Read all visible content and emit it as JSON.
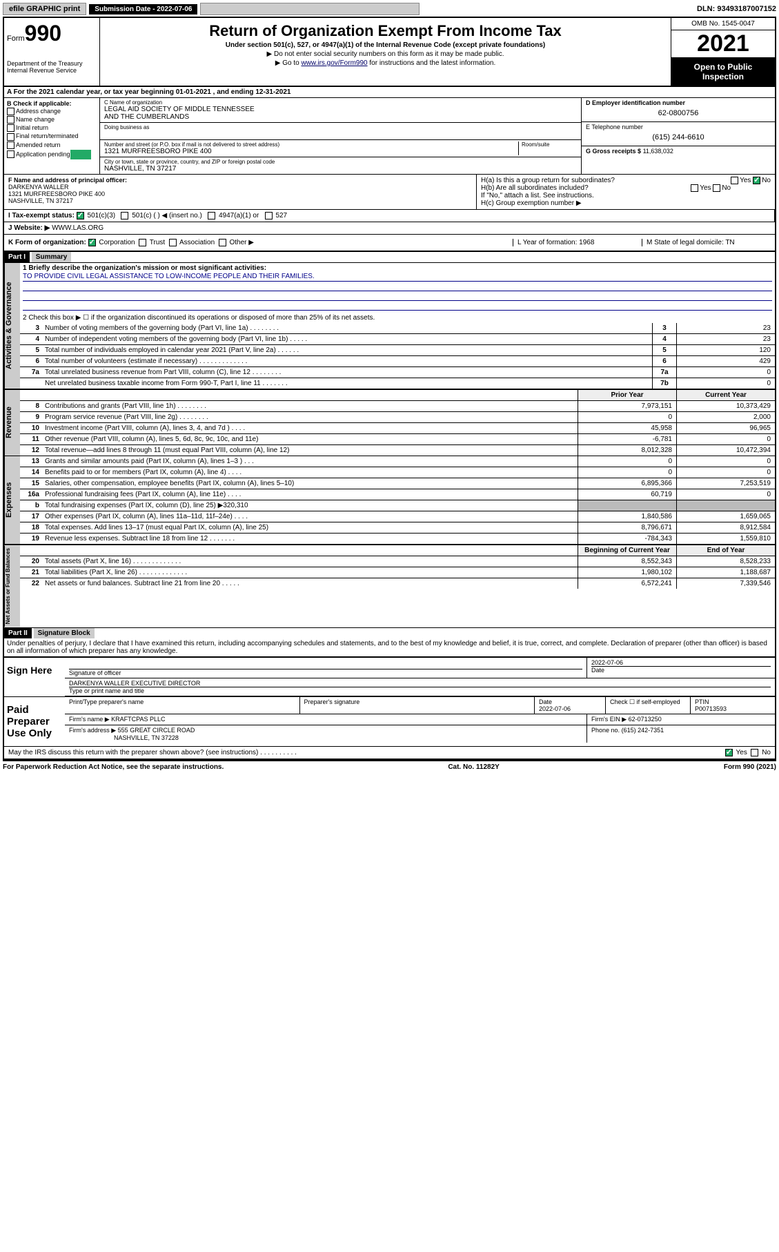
{
  "topbar": {
    "efile": "efile GRAPHIC print",
    "submission_label": "Submission Date - 2022-07-06",
    "dln": "DLN: 93493187007152"
  },
  "header": {
    "form_word": "Form",
    "form_num": "990",
    "title": "Return of Organization Exempt From Income Tax",
    "subtitle": "Under section 501(c), 527, or 4947(a)(1) of the Internal Revenue Code (except private foundations)",
    "note1": "▶ Do not enter social security numbers on this form as it may be made public.",
    "note2_pre": "▶ Go to ",
    "note2_link": "www.irs.gov/Form990",
    "note2_post": " for instructions and the latest information.",
    "dept": "Department of the Treasury\nInternal Revenue Service",
    "omb": "OMB No. 1545-0047",
    "year": "2021",
    "open": "Open to Public Inspection"
  },
  "rowA": "A For the 2021 calendar year, or tax year beginning 01-01-2021   , and ending 12-31-2021",
  "colB": {
    "title": "B Check if applicable:",
    "items": [
      "Address change",
      "Name change",
      "Initial return",
      "Final return/terminated",
      "Amended return",
      "Application pending"
    ]
  },
  "colC": {
    "name_label": "C Name of organization",
    "name": "LEGAL AID SOCIETY OF MIDDLE TENNESSEE\nAND THE CUMBERLANDS",
    "dba_label": "Doing business as",
    "addr_label": "Number and street (or P.O. box if mail is not delivered to street address)",
    "room_label": "Room/suite",
    "addr": "1321 MURFREESBORO PIKE 400",
    "city_label": "City or town, state or province, country, and ZIP or foreign postal code",
    "city": "NASHVILLE, TN  37217"
  },
  "colDE": {
    "d_label": "D Employer identification number",
    "d_val": "62-0800756",
    "e_label": "E Telephone number",
    "e_val": "(615) 244-6610",
    "g_label": "G Gross receipts $",
    "g_val": "11,638,032"
  },
  "rowF": {
    "label": "F Name and address of principal officer:",
    "line1": "DARKENYA WALLER",
    "line2": "1321 MURFREESBORO PIKE 400",
    "line3": "NASHVILLE, TN  37217"
  },
  "rowH": {
    "ha": "H(a) Is this a group return for subordinates?",
    "ha_ans": "No",
    "hb": "H(b) Are all subordinates included?",
    "hb_note": "If \"No,\" attach a list. See instructions.",
    "hc": "H(c) Group exemption number ▶"
  },
  "rowI": {
    "label": "I   Tax-exempt status:",
    "opts": [
      "501(c)(3)",
      "501(c) (   ) ◀ (insert no.)",
      "4947(a)(1) or",
      "527"
    ]
  },
  "rowJ": {
    "label": "J   Website: ▶",
    "val": "WWW.LAS.ORG"
  },
  "rowK": {
    "label": "K Form of organization:",
    "opts": [
      "Corporation",
      "Trust",
      "Association",
      "Other ▶"
    ],
    "l": "L Year of formation: 1968",
    "m": "M State of legal domicile: TN"
  },
  "part1": {
    "header": "Part I",
    "title": "Summary",
    "line1_label": "1  Briefly describe the organization's mission or most significant activities:",
    "line1_val": "TO PROVIDE CIVIL LEGAL ASSISTANCE TO LOW-INCOME PEOPLE AND THEIR FAMILIES.",
    "line2": "2  Check this box ▶ ☐  if the organization discontinued its operations or disposed of more than 25% of its net assets."
  },
  "gov_lines": [
    {
      "n": "3",
      "d": "Number of voting members of the governing body (Part VI, line 1a)  .   .   .   .   .   .   .   .",
      "b": "3",
      "v": "23"
    },
    {
      "n": "4",
      "d": "Number of independent voting members of the governing body (Part VI, line 1b)  .   .   .   .   .",
      "b": "4",
      "v": "23"
    },
    {
      "n": "5",
      "d": "Total number of individuals employed in calendar year 2021 (Part V, line 2a)  .   .   .   .   .   .",
      "b": "5",
      "v": "120"
    },
    {
      "n": "6",
      "d": "Total number of volunteers (estimate if necessary)  .   .   .   .   .   .   .   .   .   .   .   .   .",
      "b": "6",
      "v": "429"
    },
    {
      "n": "7a",
      "d": "Total unrelated business revenue from Part VIII, column (C), line 12  .   .   .   .   .   .   .   .",
      "b": "7a",
      "v": "0"
    },
    {
      "n": "",
      "d": "Net unrelated business taxable income from Form 990-T, Part I, line 11  .   .   .   .   .   .   .",
      "b": "7b",
      "v": "0"
    }
  ],
  "rev_header": {
    "c1": "Prior Year",
    "c2": "Current Year"
  },
  "rev_lines": [
    {
      "n": "8",
      "d": "Contributions and grants (Part VIII, line 1h)  .   .   .   .   .   .   .   .",
      "c1": "7,973,151",
      "c2": "10,373,429"
    },
    {
      "n": "9",
      "d": "Program service revenue (Part VIII, line 2g)  .   .   .   .   .   .   .   .",
      "c1": "0",
      "c2": "2,000"
    },
    {
      "n": "10",
      "d": "Investment income (Part VIII, column (A), lines 3, 4, and 7d )  .   .   .   .",
      "c1": "45,958",
      "c2": "96,965"
    },
    {
      "n": "11",
      "d": "Other revenue (Part VIII, column (A), lines 5, 6d, 8c, 9c, 10c, and 11e)",
      "c1": "-6,781",
      "c2": "0"
    },
    {
      "n": "12",
      "d": "Total revenue—add lines 8 through 11 (must equal Part VIII, column (A), line 12)",
      "c1": "8,012,328",
      "c2": "10,472,394"
    }
  ],
  "exp_lines": [
    {
      "n": "13",
      "d": "Grants and similar amounts paid (Part IX, column (A), lines 1–3 )  .   .   .",
      "c1": "0",
      "c2": "0"
    },
    {
      "n": "14",
      "d": "Benefits paid to or for members (Part IX, column (A), line 4)  .   .   .   .",
      "c1": "0",
      "c2": "0"
    },
    {
      "n": "15",
      "d": "Salaries, other compensation, employee benefits (Part IX, column (A), lines 5–10)",
      "c1": "6,895,366",
      "c2": "7,253,519"
    },
    {
      "n": "16a",
      "d": "Professional fundraising fees (Part IX, column (A), line 11e)  .   .   .   .",
      "c1": "60,719",
      "c2": "0"
    },
    {
      "n": "b",
      "d": "Total fundraising expenses (Part IX, column (D), line 25) ▶320,310",
      "c1": "",
      "c2": "",
      "gray": true
    },
    {
      "n": "17",
      "d": "Other expenses (Part IX, column (A), lines 11a–11d, 11f–24e)  .   .   .   .",
      "c1": "1,840,586",
      "c2": "1,659,065"
    },
    {
      "n": "18",
      "d": "Total expenses. Add lines 13–17 (must equal Part IX, column (A), line 25)",
      "c1": "8,796,671",
      "c2": "8,912,584"
    },
    {
      "n": "19",
      "d": "Revenue less expenses. Subtract line 18 from line 12 .   .   .   .   .   .   .",
      "c1": "-784,343",
      "c2": "1,559,810"
    }
  ],
  "na_header": {
    "c1": "Beginning of Current Year",
    "c2": "End of Year"
  },
  "na_lines": [
    {
      "n": "20",
      "d": "Total assets (Part X, line 16)  .   .   .   .   .   .   .   .   .   .   .   .   .",
      "c1": "8,552,343",
      "c2": "8,528,233"
    },
    {
      "n": "21",
      "d": "Total liabilities (Part X, line 26)  .   .   .   .   .   .   .   .   .   .   .   .   .",
      "c1": "1,980,102",
      "c2": "1,188,687"
    },
    {
      "n": "22",
      "d": "Net assets or fund balances. Subtract line 21 from line 20 .   .   .   .   .",
      "c1": "6,572,241",
      "c2": "7,339,546"
    }
  ],
  "part2": {
    "header": "Part II",
    "title": "Signature Block",
    "declaration": "Under penalties of perjury, I declare that I have examined this return, including accompanying schedules and statements, and to the best of my knowledge and belief, it is true, correct, and complete. Declaration of preparer (other than officer) is based on all information of which preparer has any knowledge."
  },
  "sign": {
    "here": "Sign Here",
    "sig_label": "Signature of officer",
    "date_label": "Date",
    "date": "2022-07-06",
    "name": "DARKENYA WALLER  EXECUTIVE DIRECTOR",
    "name_label": "Type or print name and title"
  },
  "paid": {
    "title": "Paid Preparer Use Only",
    "h1": "Print/Type preparer's name",
    "h2": "Preparer's signature",
    "h3": "Date",
    "h3v": "2022-07-06",
    "h4": "Check ☐ if self-employed",
    "h5": "PTIN",
    "h5v": "P00713593",
    "firm_label": "Firm's name    ▶",
    "firm": "KRAFTCPAS PLLC",
    "ein_label": "Firm's EIN ▶",
    "ein": "62-0713250",
    "addr_label": "Firm's address ▶",
    "addr1": "555 GREAT CIRCLE ROAD",
    "addr2": "NASHVILLE, TN  37228",
    "phone_label": "Phone no.",
    "phone": "(615) 242-7351"
  },
  "footer": {
    "may": "May the IRS discuss this return with the preparer shown above? (see instructions)  .   .   .   .   .   .   .   .   .   .",
    "yes": "Yes",
    "no": "No",
    "pra": "For Paperwork Reduction Act Notice, see the separate instructions.",
    "cat": "Cat. No. 11282Y",
    "form": "Form 990 (2021)"
  },
  "vtabs": {
    "gov": "Activities & Governance",
    "rev": "Revenue",
    "exp": "Expenses",
    "na": "Net Assets or Fund Balances"
  }
}
